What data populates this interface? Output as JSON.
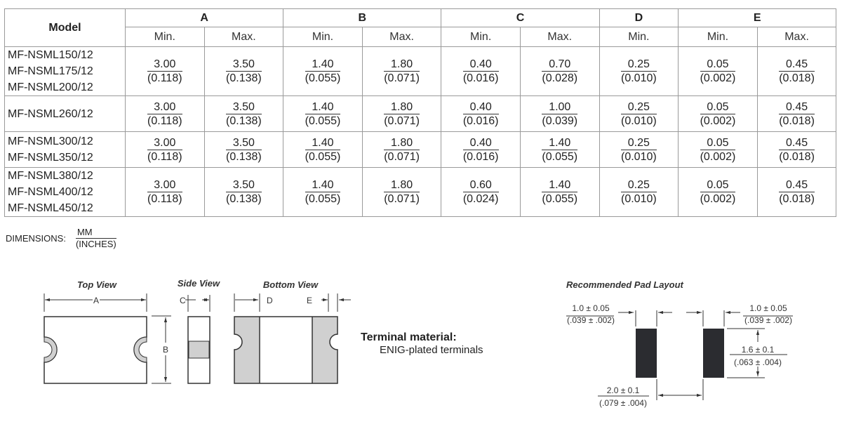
{
  "table": {
    "model_header": "Model",
    "groups": [
      "A",
      "B",
      "C",
      "D",
      "E"
    ],
    "sub_headers": [
      "Min.",
      "Max.",
      "Min.",
      "Max.",
      "Min.",
      "Max.",
      "Min.",
      "Min.",
      "Max."
    ],
    "rows": [
      {
        "models": [
          "MF-NSML150/12",
          "MF-NSML175/12",
          "MF-NSML200/12"
        ],
        "cells": [
          [
            "3.00",
            "(0.118)"
          ],
          [
            "3.50",
            "(0.138)"
          ],
          [
            "1.40",
            "(0.055)"
          ],
          [
            "1.80",
            "(0.071)"
          ],
          [
            "0.40",
            "(0.016)"
          ],
          [
            "0.70",
            "(0.028)"
          ],
          [
            "0.25",
            "(0.010)"
          ],
          [
            "0.05",
            "(0.002)"
          ],
          [
            "0.45",
            "(0.018)"
          ]
        ]
      },
      {
        "models": [
          "MF-NSML260/12"
        ],
        "cells": [
          [
            "3.00",
            "(0.118)"
          ],
          [
            "3.50",
            "(0.138)"
          ],
          [
            "1.40",
            "(0.055)"
          ],
          [
            "1.80",
            "(0.071)"
          ],
          [
            "0.40",
            "(0.016)"
          ],
          [
            "1.00",
            "(0.039)"
          ],
          [
            "0.25",
            "(0.010)"
          ],
          [
            "0.05",
            "(0.002)"
          ],
          [
            "0.45",
            "(0.018)"
          ]
        ]
      },
      {
        "models": [
          "MF-NSML300/12",
          "MF-NSML350/12"
        ],
        "cells": [
          [
            "3.00",
            "(0.118)"
          ],
          [
            "3.50",
            "(0.138)"
          ],
          [
            "1.40",
            "(0.055)"
          ],
          [
            "1.80",
            "(0.071)"
          ],
          [
            "0.40",
            "(0.016)"
          ],
          [
            "1.40",
            "(0.055)"
          ],
          [
            "0.25",
            "(0.010)"
          ],
          [
            "0.05",
            "(0.002)"
          ],
          [
            "0.45",
            "(0.018)"
          ]
        ]
      },
      {
        "models": [
          "MF-NSML380/12",
          "MF-NSML400/12",
          "MF-NSML450/12"
        ],
        "cells": [
          [
            "3.00",
            "(0.118)"
          ],
          [
            "3.50",
            "(0.138)"
          ],
          [
            "1.40",
            "(0.055)"
          ],
          [
            "1.80",
            "(0.071)"
          ],
          [
            "0.60",
            "(0.024)"
          ],
          [
            "1.40",
            "(0.055)"
          ],
          [
            "0.25",
            "(0.010)"
          ],
          [
            "0.05",
            "(0.002)"
          ],
          [
            "0.45",
            "(0.018)"
          ]
        ]
      }
    ]
  },
  "dimensions": {
    "label": "DIMENSIONS:",
    "unit_top": "MM",
    "unit_bottom": "(INCHES)"
  },
  "views": {
    "top_view": "Top View",
    "side_view": "Side View",
    "bottom_view": "Bottom View",
    "dim_a": "A",
    "dim_b": "B",
    "dim_c": "C",
    "dim_d": "D",
    "dim_e": "E"
  },
  "terminal": {
    "title": "Terminal material:",
    "value": "ENIG-plated terminals"
  },
  "pad_layout": {
    "title": "Recommended Pad Layout",
    "left_width": [
      "1.0 ± 0.05",
      "(.039 ± .002)"
    ],
    "right_width": [
      "1.0 ± 0.05",
      "(.039 ± .002)"
    ],
    "height": [
      "1.6 ± 0.1",
      "(.063 ± .004)"
    ],
    "gap": [
      "2.0 ± 0.1",
      "(.079 ± .004)"
    ]
  },
  "colors": {
    "pad": "#2b2c30",
    "terminal_fill": "#d0d0d0",
    "grid": "#9a9a9a"
  }
}
